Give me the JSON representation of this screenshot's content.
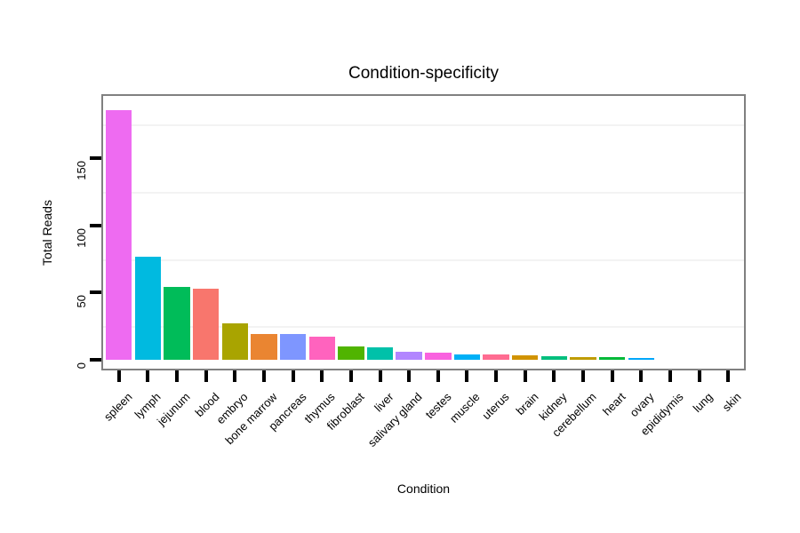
{
  "chart_data": {
    "type": "bar",
    "title": "Condition-specificity",
    "xlabel": "Condition",
    "ylabel": "Total Reads",
    "categories": [
      "spleen",
      "lymph",
      "jejunum",
      "blood",
      "embryo",
      "bone marrow",
      "pancreas",
      "thymus",
      "fibroblast",
      "liver",
      "salivary gland",
      "testes",
      "muscle",
      "uterus",
      "brain",
      "kidney",
      "cerebellum",
      "heart",
      "ovary",
      "epididymis",
      "lung",
      "skin"
    ],
    "values": [
      186,
      77,
      54,
      53,
      27,
      19,
      19,
      17,
      10,
      9,
      6,
      5,
      4,
      4,
      3,
      2.5,
      2,
      2,
      1.5,
      0,
      0,
      0
    ],
    "bar_colors": [
      "#EE6BF1",
      "#00BAE0",
      "#00BC59",
      "#F8766D",
      "#A9A400",
      "#EA8531",
      "#7E96FF",
      "#FF63BE",
      "#50B400",
      "#00C1A9",
      "#B286FF",
      "#F962DF",
      "#00B0F6",
      "#FF6C91",
      "#D19300",
      "#00BF7D",
      "#BF9C00",
      "#00B938",
      "#00A7FA",
      "#7CAE00",
      "#00BFC4",
      "#DB72FB"
    ],
    "yticks": [
      0,
      50,
      100,
      150
    ],
    "minor_gridlines": [
      25,
      75,
      125,
      175
    ],
    "ylim": [
      0,
      197
    ],
    "legend": "none",
    "grid": "horizontal-minor-only",
    "panel_border_color": "#808080",
    "background_color": "#ffffff",
    "bar_orientation": "vertical",
    "x_label_angle_deg": 45,
    "y_label_angle_deg": 90
  }
}
